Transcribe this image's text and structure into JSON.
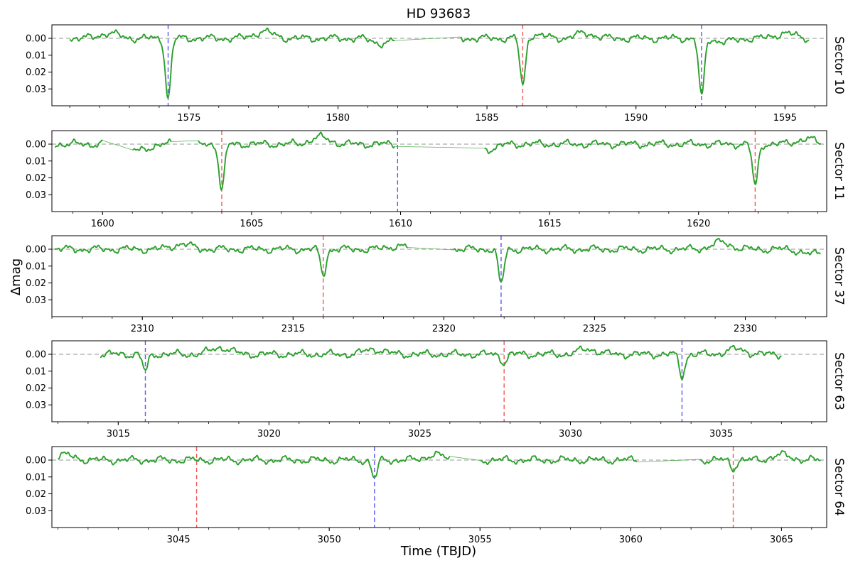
{
  "chart_data": {
    "type": "line",
    "title": "HD 93683",
    "xlabel": "Time (TBJD)",
    "ylabel": "Δmag",
    "y_inverted": true,
    "ylim": [
      -0.008,
      0.04
    ],
    "yticks": [
      0.0,
      0.01,
      0.02,
      0.03
    ],
    "ytick_labels": [
      "0.00",
      "0.01",
      "0.02",
      "0.03"
    ],
    "series_color": "#2ca02c",
    "primary_eclipse_color": "#5b5bf0",
    "secondary_eclipse_color": "#f05b5b",
    "zero_line_color": "#aaaaaa",
    "panels": [
      {
        "sector": "Sector 10",
        "xlim": [
          1570.4,
          1596.4
        ],
        "xticks": [
          1575,
          1580,
          1585,
          1590,
          1595
        ],
        "xtick_labels": [
          "1575",
          "1580",
          "1585",
          "1590",
          "1595"
        ],
        "data_range": [
          1571.0,
          1595.8
        ],
        "gaps": [
          [
            1581.9,
            1584.1
          ]
        ],
        "primary_eclipses": [
          {
            "time": 1574.3,
            "depth": 0.035
          },
          {
            "time": 1592.2,
            "depth": 0.035
          }
        ],
        "secondary_eclipses": [
          {
            "time": 1586.2,
            "depth": 0.029
          }
        ],
        "bumps": [
          [
            1572.3,
            0.003
          ],
          [
            1577.5,
            0.004
          ],
          [
            1581.5,
            -0.003
          ],
          [
            1586.6,
            0.002
          ],
          [
            1588.3,
            0.003
          ],
          [
            1593.0,
            -0.002
          ],
          [
            1595.0,
            0.003
          ]
        ]
      },
      {
        "sector": "Sector 11",
        "xlim": [
          1598.3,
          1624.3
        ],
        "xticks": [
          1600,
          1605,
          1610,
          1615,
          1620
        ],
        "xtick_labels": [
          "1600",
          "1605",
          "1610",
          "1615",
          "1620"
        ],
        "data_range": [
          1598.4,
          1624.1
        ],
        "gaps": [
          [
            1600.0,
            1601.0
          ],
          [
            1602.3,
            1603.2
          ],
          [
            1609.8,
            1612.8
          ]
        ],
        "primary_eclipses": [
          {
            "time": 1609.9,
            "depth": 0.0
          }
        ],
        "secondary_eclipses": [
          {
            "time": 1604.0,
            "depth": 0.027
          },
          {
            "time": 1621.9,
            "depth": 0.025
          }
        ],
        "bumps": [
          [
            1601.2,
            -0.004
          ],
          [
            1607.3,
            0.004
          ],
          [
            1612.9,
            -0.003
          ],
          [
            1623.6,
            0.003
          ]
        ]
      },
      {
        "sector": "Sector 37",
        "xlim": [
          2307.0,
          2332.7
        ],
        "xticks": [
          2310,
          2315,
          2320,
          2325,
          2330
        ],
        "xtick_labels": [
          "2310",
          "2315",
          "2320",
          "2325",
          "2330"
        ],
        "data_range": [
          2307.1,
          2332.5
        ],
        "gaps": [
          [
            2318.8,
            2320.3
          ]
        ],
        "primary_eclipses": [
          {
            "time": 2321.9,
            "depth": 0.021
          }
        ],
        "secondary_eclipses": [
          {
            "time": 2316.0,
            "depth": 0.015
          }
        ],
        "bumps": [
          [
            2311.3,
            0.003
          ],
          [
            2318.5,
            0.002
          ],
          [
            2329.2,
            0.004
          ],
          [
            2332.2,
            -0.003
          ]
        ]
      },
      {
        "sector": "Sector 63",
        "xlim": [
          3012.8,
          3038.5
        ],
        "xticks": [
          3015,
          3020,
          3025,
          3030,
          3035
        ],
        "xtick_labels": [
          "3015",
          "3020",
          "3025",
          "3030",
          "3035"
        ],
        "data_range": [
          3014.4,
          3037.0
        ],
        "gaps": [],
        "primary_eclipses": [
          {
            "time": 3015.9,
            "depth": 0.01
          },
          [
            3033.7,
            0.013
          ]
        ],
        "secondary_eclipses": [
          {
            "time": 3027.8,
            "depth": 0.005
          }
        ],
        "bumps": [
          [
            3018.4,
            0.004
          ],
          [
            3023.5,
            0.003
          ],
          [
            3030.6,
            0.003
          ],
          [
            3035.5,
            0.003
          ]
        ]
      },
      {
        "sector": "Sector 64",
        "xlim": [
          3040.8,
          3066.5
        ],
        "xticks": [
          3045,
          3050,
          3055,
          3060,
          3065
        ],
        "xtick_labels": [
          "3045",
          "3050",
          "3055",
          "3060",
          "3065"
        ],
        "data_range": [
          3041.0,
          3066.3
        ],
        "gaps": [
          [
            3054.0,
            3055.0
          ],
          [
            3060.2,
            3062.3
          ]
        ],
        "primary_eclipses": [
          {
            "time": 3051.5,
            "depth": 0.011
          }
        ],
        "secondary_eclipses": [
          {
            "time": 3045.6,
            "depth": 0.0
          },
          {
            "time": 3063.4,
            "depth": 0.005
          }
        ],
        "bumps": [
          [
            3041.2,
            0.003
          ],
          [
            3053.5,
            0.003
          ],
          [
            3065.0,
            0.003
          ]
        ]
      }
    ]
  }
}
